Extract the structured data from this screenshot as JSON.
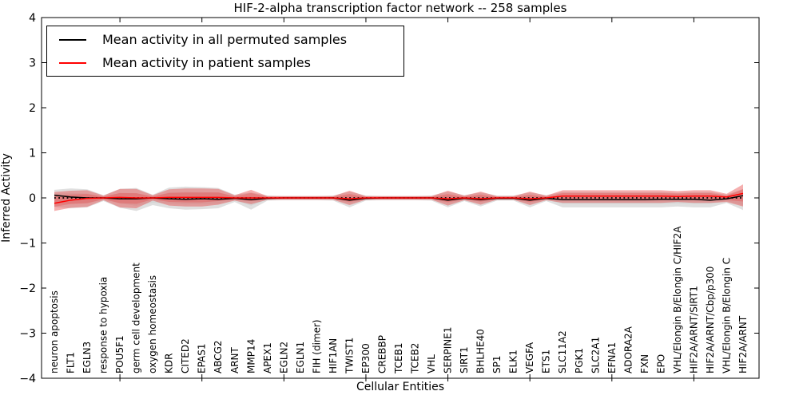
{
  "title": "HIF-2-alpha transcription factor network -- 258 samples",
  "legend": {
    "permuted_label": "Mean activity in all permuted samples",
    "patient_label": "Mean activity in patient samples",
    "permuted_color": "#000000",
    "patient_color": "#ff0000"
  },
  "axes": {
    "xlabel": "Cellular Entities",
    "ylabel": "Inferred Activity",
    "yticks": [
      4,
      3,
      2,
      1,
      0,
      -1,
      -2,
      -3,
      -4
    ],
    "ylim": [
      -4,
      4
    ]
  },
  "chart_data": {
    "type": "area",
    "title": "HIF-2-alpha transcription factor network -- 258 samples",
    "xlabel": "Cellular Entities",
    "ylabel": "Inferred Activity",
    "ylim": [
      -4,
      4
    ],
    "grid": false,
    "legend_position": "upper left",
    "categories": [
      "neuron apoptosis",
      "FLT1",
      "EGLN3",
      "response to hypoxia",
      "POU5F1",
      "germ cell development",
      "oxygen homeostasis",
      "KDR",
      "CITED2",
      "EPAS1",
      "ABCG2",
      "ARNT",
      "MMP14",
      "APEX1",
      "EGLN2",
      "EGLN1",
      "FIH (dimer)",
      "HIF1AN",
      "TWIST1",
      "EP300",
      "CREBBP",
      "TCEB1",
      "TCEB2",
      "VHL",
      "SERPINE1",
      "SIRT1",
      "BHLHE40",
      "SP1",
      "ELK1",
      "VEGFA",
      "ETS1",
      "SLC11A2",
      "PGK1",
      "SLC2A1",
      "EFNA1",
      "ADORA2A",
      "FXN",
      "EPO",
      "VHL/Elongin B/Elongin C/HIF2A",
      "HIF2A/ARNT/SIRT1",
      "HIF2A/ARNT/Cbp/p300",
      "VHL/Elongin B/Elongin C",
      "HIF2A/ARNT"
    ],
    "series": [
      {
        "name": "permuted_mean",
        "values": [
          0.06,
          0.02,
          0.0,
          0.0,
          -0.02,
          -0.02,
          0.0,
          -0.02,
          -0.03,
          -0.02,
          -0.03,
          -0.01,
          -0.04,
          -0.01,
          0.0,
          0.0,
          0.0,
          0.0,
          -0.05,
          -0.01,
          0.0,
          0.0,
          0.0,
          0.0,
          -0.05,
          -0.01,
          -0.04,
          -0.01,
          -0.01,
          -0.05,
          -0.01,
          -0.04,
          -0.04,
          -0.04,
          -0.04,
          -0.04,
          -0.04,
          -0.03,
          -0.03,
          -0.03,
          -0.05,
          -0.02,
          0.05
        ]
      },
      {
        "name": "patient_mean",
        "values": [
          -0.12,
          -0.05,
          -0.01,
          0.0,
          0.01,
          0.0,
          0.0,
          0.01,
          0.01,
          0.01,
          0.01,
          0.0,
          0.0,
          0.0,
          0.0,
          0.0,
          0.0,
          0.0,
          -0.02,
          0.0,
          0.0,
          0.0,
          0.0,
          0.0,
          -0.02,
          0.0,
          -0.02,
          0.0,
          0.0,
          -0.02,
          0.0,
          0.04,
          0.04,
          0.04,
          0.04,
          0.04,
          0.04,
          0.04,
          0.03,
          0.04,
          0.04,
          0.02,
          0.1
        ]
      },
      {
        "name": "permuted_upper",
        "values": [
          0.18,
          0.21,
          0.19,
          0.06,
          0.2,
          0.22,
          0.07,
          0.23,
          0.25,
          0.24,
          0.22,
          0.07,
          0.12,
          0.05,
          0.04,
          0.04,
          0.04,
          0.05,
          0.14,
          0.05,
          0.04,
          0.04,
          0.04,
          0.05,
          0.14,
          0.06,
          0.12,
          0.05,
          0.05,
          0.12,
          0.06,
          0.13,
          0.13,
          0.13,
          0.13,
          0.13,
          0.13,
          0.13,
          0.11,
          0.13,
          0.13,
          0.07,
          0.2
        ]
      },
      {
        "name": "permuted_lower",
        "values": [
          -0.2,
          -0.23,
          -0.21,
          -0.07,
          -0.22,
          -0.29,
          -0.16,
          -0.23,
          -0.26,
          -0.25,
          -0.23,
          -0.09,
          -0.26,
          -0.06,
          -0.05,
          -0.05,
          -0.05,
          -0.06,
          -0.21,
          -0.06,
          -0.05,
          -0.05,
          -0.05,
          -0.06,
          -0.21,
          -0.07,
          -0.19,
          -0.06,
          -0.06,
          -0.21,
          -0.07,
          -0.21,
          -0.21,
          -0.21,
          -0.21,
          -0.21,
          -0.21,
          -0.21,
          -0.19,
          -0.21,
          -0.21,
          -0.11,
          -0.27
        ]
      },
      {
        "name": "patient_upper",
        "values": [
          0.13,
          0.16,
          0.17,
          0.05,
          0.2,
          0.2,
          0.06,
          0.19,
          0.21,
          0.21,
          0.2,
          0.06,
          0.18,
          0.04,
          0.04,
          0.04,
          0.04,
          0.04,
          0.16,
          0.04,
          0.04,
          0.04,
          0.04,
          0.04,
          0.16,
          0.05,
          0.14,
          0.04,
          0.04,
          0.14,
          0.05,
          0.17,
          0.17,
          0.17,
          0.17,
          0.17,
          0.17,
          0.17,
          0.15,
          0.17,
          0.17,
          0.09,
          0.3
        ]
      },
      {
        "name": "patient_lower",
        "values": [
          -0.29,
          -0.22,
          -0.2,
          -0.05,
          -0.21,
          -0.23,
          -0.06,
          -0.17,
          -0.19,
          -0.19,
          -0.15,
          -0.06,
          -0.14,
          -0.04,
          -0.04,
          -0.04,
          -0.04,
          -0.04,
          -0.16,
          -0.04,
          -0.04,
          -0.04,
          -0.04,
          -0.04,
          -0.17,
          -0.05,
          -0.15,
          -0.04,
          -0.04,
          -0.16,
          -0.05,
          -0.11,
          -0.11,
          -0.11,
          -0.11,
          -0.11,
          -0.11,
          -0.11,
          -0.09,
          -0.11,
          -0.11,
          -0.09,
          -0.19
        ]
      }
    ],
    "colors": {
      "permuted_band": "#b8b8b8",
      "patient_band": "#e84040",
      "permuted_line": "#000000",
      "patient_line": "#ff0000",
      "zero_line": "#000000"
    }
  }
}
